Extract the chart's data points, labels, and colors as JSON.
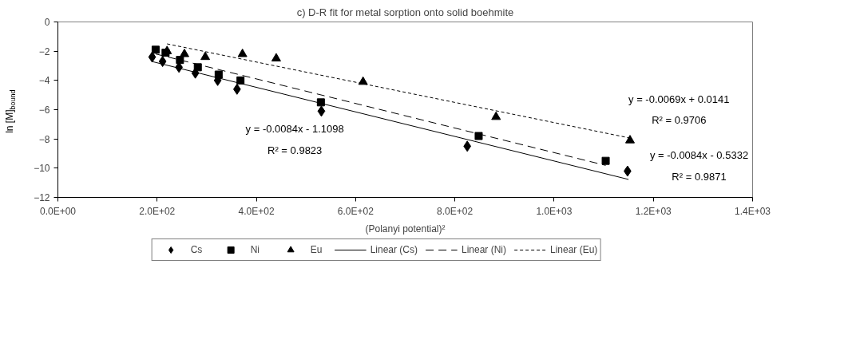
{
  "chart_data": {
    "type": "scatter",
    "title": "c) D-R fit for metal sorption onto solid boehmite",
    "xlabel": "(Polanyi potential)²",
    "ylabel": "ln [M]$_{bound}$",
    "xlim": [
      0,
      1400
    ],
    "xticks": [
      {
        "value": 0,
        "label": "0.0E+00"
      },
      {
        "value": 200,
        "label": "2.0E+02"
      },
      {
        "value": 400,
        "label": "4.0E+02"
      },
      {
        "value": 600,
        "label": "6.0E+02"
      },
      {
        "value": 800,
        "label": "8.0E+02"
      },
      {
        "value": 1000,
        "label": "1.0E+03"
      },
      {
        "value": 1200,
        "label": "1.2E+03"
      },
      {
        "value": 1400,
        "label": "1.4E+03"
      }
    ],
    "ylim": [
      -12,
      0
    ],
    "yticks": [
      -12,
      -10,
      -8,
      -6,
      -4,
      -2,
      0
    ],
    "grid": false,
    "legend": "bottom",
    "series": [
      {
        "name": "Cs",
        "color": "#000000",
        "marker": "diamond",
        "x": [
          190,
          211,
          244,
          277,
          322,
          361,
          531,
          825,
          1148
        ],
        "values": [
          -2.4,
          -2.7,
          -3.1,
          -3.5,
          -4.0,
          -4.6,
          -6.1,
          -8.5,
          -10.2
        ]
      },
      {
        "name": "Ni",
        "color": "#000000",
        "marker": "square",
        "x": [
          197,
          217,
          246,
          282,
          324,
          368,
          530,
          848,
          1104
        ],
        "values": [
          -1.9,
          -2.1,
          -2.6,
          -3.1,
          -3.6,
          -4.0,
          -5.5,
          -7.8,
          -9.5
        ]
      },
      {
        "name": "Eu",
        "color": "#000000",
        "marker": "triangle",
        "x": [
          220,
          255,
          297,
          372,
          440,
          615,
          883,
          1153
        ],
        "values": [
          -2.0,
          -2.2,
          -2.4,
          -2.2,
          -2.5,
          -4.1,
          -6.5,
          -8.1
        ]
      },
      {
        "name": "Linear (Cs)",
        "type": "line",
        "color": "#000000",
        "line_style": "solid",
        "x": [
          190,
          1150
        ],
        "values": [
          -2.71,
          -10.77
        ]
      },
      {
        "name": "Linear (Ni)",
        "type": "line",
        "color": "#000000",
        "line_style": "dashed",
        "x": [
          197,
          1104
        ],
        "values": [
          -2.19,
          -9.81
        ]
      },
      {
        "name": "Linear (Eu)",
        "type": "line",
        "color": "#000000",
        "line_style": "dotted",
        "x": [
          220,
          1153
        ],
        "values": [
          -1.5,
          -7.94
        ]
      }
    ],
    "annotations": [
      "y = -0.0084x - 1.1098",
      "R² = 0.9823",
      "y = -0.0069x + 0.0141",
      "R² = 0.9706",
      "y = -0.0084x - 0.5332",
      "R² = 0.9871"
    ]
  }
}
